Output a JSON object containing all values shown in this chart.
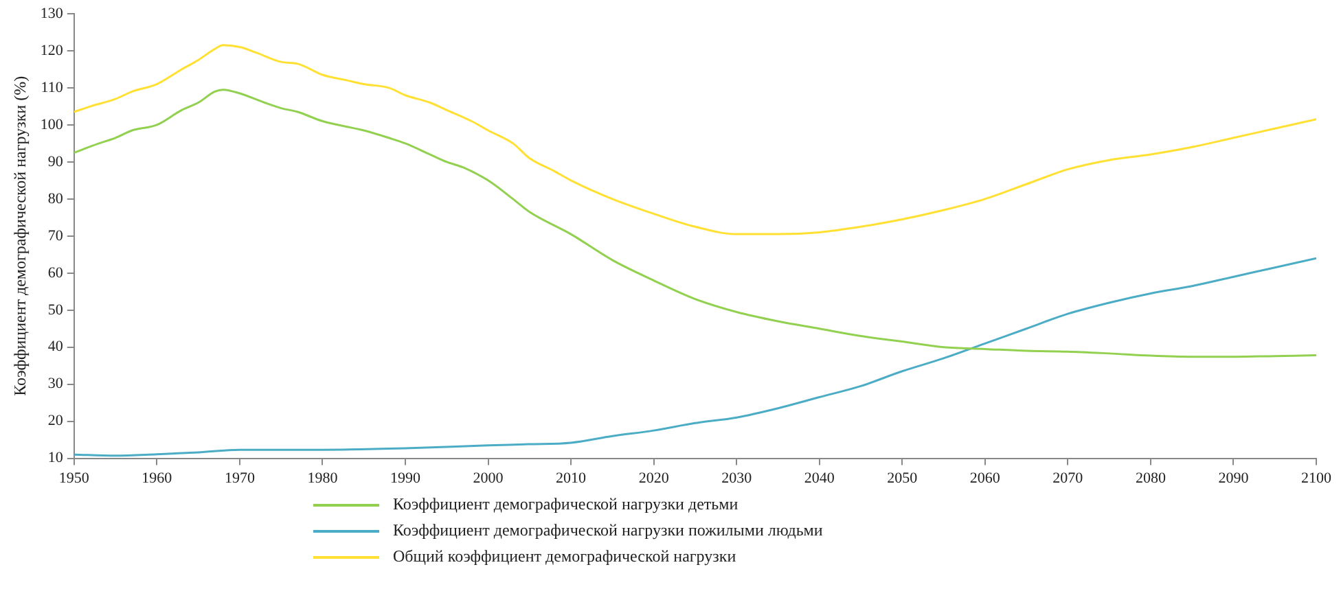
{
  "chart_data": {
    "type": "line",
    "ylabel": "Коэффициент демографической нагрузки (%)",
    "xlim": [
      1950,
      2100
    ],
    "xticks": [
      1950,
      1960,
      1970,
      1980,
      1990,
      2000,
      2010,
      2020,
      2030,
      2040,
      2050,
      2060,
      2070,
      2080,
      2090,
      2100
    ],
    "ylim": [
      10,
      130
    ],
    "yticks": [
      10,
      20,
      30,
      40,
      50,
      60,
      70,
      80,
      90,
      100,
      110,
      120,
      130
    ],
    "grid": false,
    "legend": "bottom",
    "marker": "none",
    "line_style": "solid",
    "series": [
      {
        "name": "Коэффициент демографической нагрузки детьми",
        "color": "#92d050",
        "x": [
          1950,
          1953,
          1955,
          1957,
          1960,
          1963,
          1965,
          1967,
          1968,
          1970,
          1973,
          1975,
          1977,
          1980,
          1985,
          1988,
          1990,
          1993,
          1995,
          1997,
          2000,
          2003,
          2005,
          2010,
          2015,
          2020,
          2025,
          2030,
          2035,
          2040,
          2045,
          2050,
          2055,
          2060,
          2065,
          2070,
          2075,
          2080,
          2085,
          2090,
          2095,
          2100
        ],
        "values": [
          92.5,
          95,
          96.5,
          98.5,
          100,
          104,
          106,
          109,
          109.5,
          108.5,
          106,
          104.5,
          103.5,
          101,
          98.5,
          96.5,
          95,
          92,
          90,
          88.5,
          85,
          80,
          76.5,
          70.5,
          63.5,
          58,
          53,
          49.5,
          47,
          45,
          43,
          41.5,
          40,
          39.5,
          39,
          38.8,
          38.3,
          37.7,
          37.4,
          37.4,
          37.6,
          37.8
        ]
      },
      {
        "name": "Коэффициент демографической нагрузки пожилыми людьми",
        "color": "#4bacc6",
        "x": [
          1950,
          1955,
          1960,
          1965,
          1970,
          1980,
          1990,
          2000,
          2005,
          2010,
          2015,
          2020,
          2025,
          2030,
          2035,
          2040,
          2045,
          2050,
          2055,
          2060,
          2065,
          2070,
          2075,
          2080,
          2085,
          2090,
          2095,
          2100
        ],
        "values": [
          11,
          10.7,
          11.1,
          11.6,
          12.3,
          12.3,
          12.7,
          13.5,
          13.8,
          14.2,
          16,
          17.5,
          19.5,
          21,
          23.5,
          26.5,
          29.5,
          33.5,
          37,
          41,
          45,
          49,
          52,
          54.5,
          56.5,
          59,
          61.5,
          64
        ]
      },
      {
        "name": "Общий коэффициент демографической нагрузки",
        "color": "#ffe033",
        "x": [
          1950,
          1952,
          1955,
          1957,
          1960,
          1963,
          1965,
          1967,
          1968,
          1970,
          1972,
          1975,
          1977,
          1980,
          1983,
          1985,
          1988,
          1990,
          1993,
          1995,
          1998,
          2000,
          2003,
          2005,
          2008,
          2010,
          2015,
          2020,
          2025,
          2030,
          2035,
          2040,
          2045,
          2050,
          2055,
          2060,
          2065,
          2070,
          2075,
          2080,
          2085,
          2090,
          2095,
          2100
        ],
        "values": [
          103.5,
          105,
          107,
          109,
          111,
          115,
          117.5,
          120.5,
          121.5,
          121,
          119.5,
          117,
          116.5,
          113.5,
          112,
          111,
          110,
          108,
          106,
          104,
          101,
          98.5,
          95,
          91,
          87.5,
          85,
          80,
          76,
          72.5,
          70.5,
          70.5,
          71,
          72.5,
          74.5,
          77,
          80,
          84,
          88,
          90.5,
          92,
          94,
          96.5,
          99,
          101.5
        ]
      }
    ]
  }
}
